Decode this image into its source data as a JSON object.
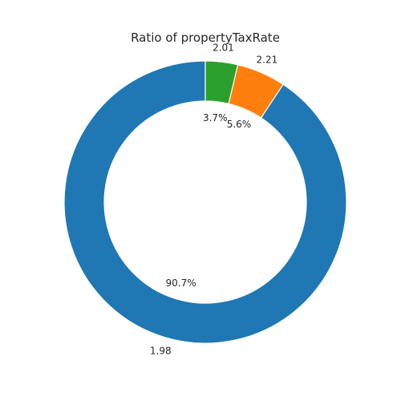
{
  "chart_data": {
    "type": "pie",
    "title": "Ratio of propertyTaxRate",
    "donut": true,
    "slices": [
      {
        "label": "1.98",
        "percent": 90.7,
        "pct_label": "90.7%",
        "color": "#1f77b4"
      },
      {
        "label": "2.21",
        "percent": 5.6,
        "pct_label": "5.6%",
        "color": "#ff7f0e"
      },
      {
        "label": "2.01",
        "percent": 3.7,
        "pct_label": "3.7%",
        "color": "#2ca02c"
      }
    ],
    "start_angle_deg": 90,
    "direction": "counterclockwise"
  }
}
